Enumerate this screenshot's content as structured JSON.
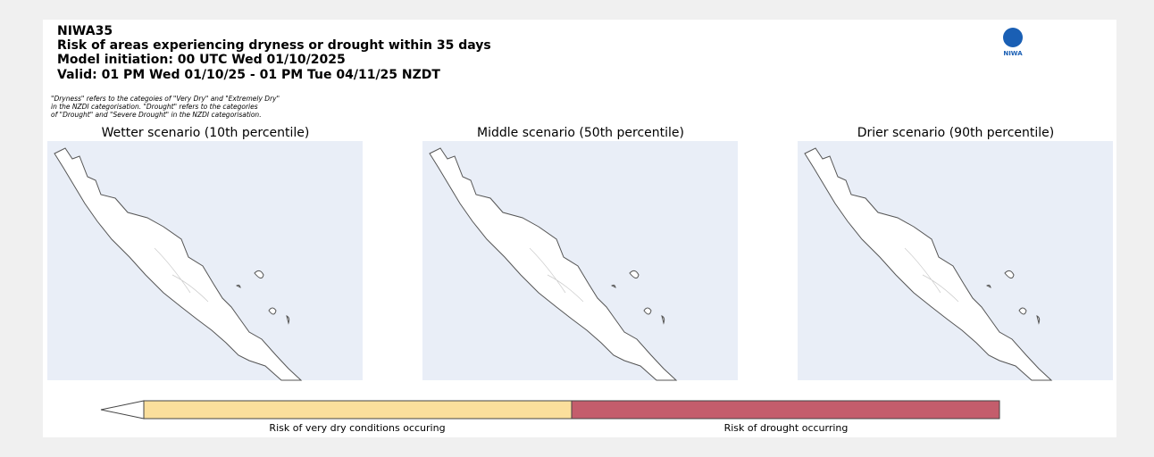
{
  "header": {
    "lines": [
      "NIWA35",
      "Risk of areas experiencing dryness or drought within 35 days",
      "Model initiation: 00 UTC Wed 01/10/2025",
      "Valid: 01 PM Wed 01/10/25 - 01 PM Tue 04/11/25 NZDT"
    ]
  },
  "note": {
    "lines": [
      "\"Dryness\" refers to the categoies of \"Very Dry\" and \"Extremely Dry\"",
      "in the NZDI categorisation. \"Drought\" refers to the categories",
      "of \"Drought\" and \"Severe Drought\" in the NZDI categorisation."
    ]
  },
  "logo": {
    "text": "NIWA"
  },
  "panels": [
    {
      "title": "Wetter scenario (10th percentile)"
    },
    {
      "title": "Middle scenario (50th percentile)"
    },
    {
      "title": "Drier scenario (90th percentile)"
    }
  ],
  "legend": {
    "items": [
      {
        "label": "Risk of very dry conditions occuring",
        "color": "#fbdf9c"
      },
      {
        "label": "Risk of drought occurring",
        "color": "#c45d6c"
      }
    ]
  }
}
